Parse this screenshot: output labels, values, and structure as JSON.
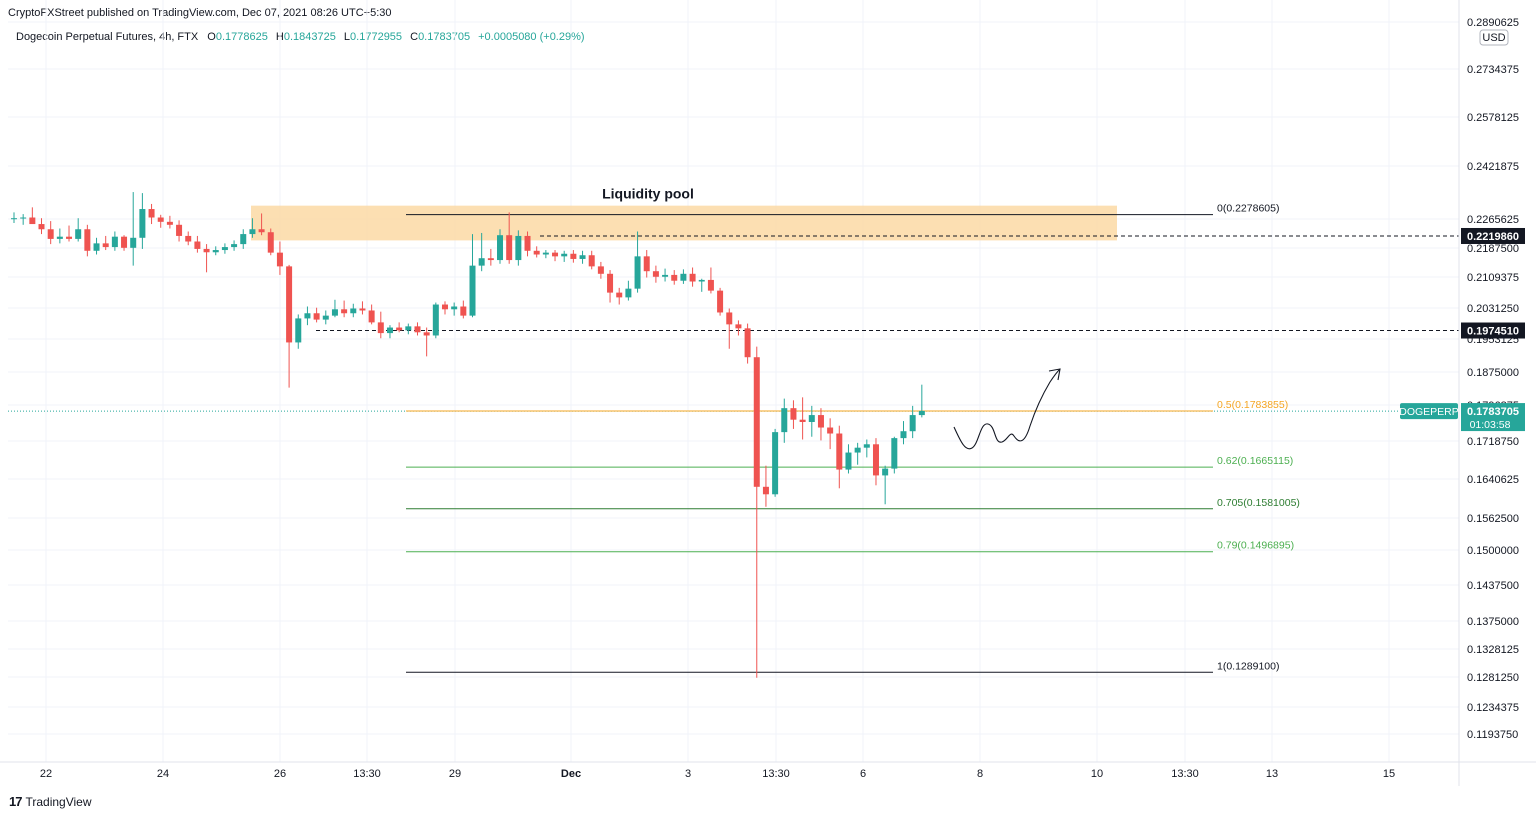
{
  "header": {
    "publisher_line": "CryptoFXStreet published on TradingView.com, Dec 07, 2021 08:26 UTC+5:30",
    "symbol_title": "Dogecoin Perpetual Futures, 4h, FTX",
    "ohlc": {
      "o_label": "O",
      "o_value": "0.1778625",
      "h_label": "H",
      "h_value": "0.1843725",
      "l_label": "L",
      "l_value": "0.1772955",
      "c_label": "C",
      "c_value": "0.1783705",
      "change": "+0.0005080 (+0.29%)"
    }
  },
  "footer": {
    "brand": "TradingView",
    "brand_mark": "17"
  },
  "colors": {
    "up": "#26a69a",
    "down": "#ef5350",
    "grid": "#f0f3fa",
    "zone": "#fbd9a4",
    "fib_half": "#f5a623",
    "fib_green": "#4caf50",
    "text": "#131722"
  },
  "chart_data": {
    "type": "candlestick",
    "title": "Dogecoin Perpetual Futures, 4h, FTX",
    "currency": "USD",
    "x_tick_labels": [
      "22",
      "24",
      "26",
      "13:30",
      "29",
      "Dec",
      "3",
      "13:30",
      "6",
      "8",
      "10",
      "13:30",
      "13",
      "15"
    ],
    "y_tick_labels": [
      "0.2890625",
      "0.2734375",
      "0.2578125",
      "0.2421875",
      "0.2265625",
      "0.2187500",
      "0.2109375",
      "0.2031250",
      "0.1953125",
      "0.1875000",
      "0.1796875",
      "0.1718750",
      "0.1640625",
      "0.1562500",
      "0.1500000",
      "0.1437500",
      "0.1375000",
      "0.1328125",
      "0.1281250",
      "0.1234375",
      "0.1193750"
    ],
    "last_price": {
      "symbol": "DOGEPERP",
      "value": "0.1783705",
      "countdown": "01:03:58"
    },
    "horizontal_levels": [
      {
        "label": "0.2219860",
        "value": 0.221986,
        "style": "dashed"
      },
      {
        "label": "0.1974510",
        "value": 0.197451,
        "style": "dashed"
      }
    ],
    "fib_levels": [
      {
        "label": "0(0.2278605)",
        "ratio": 0,
        "value": 0.2278605,
        "color": "#131722"
      },
      {
        "label": "0.5(0.1783855)",
        "ratio": 0.5,
        "value": 0.1783855,
        "color": "#f5a623"
      },
      {
        "label": "0.62(0.1665115)",
        "ratio": 0.62,
        "value": 0.1665115,
        "color": "#4caf50"
      },
      {
        "label": "0.705(0.1581005)",
        "ratio": 0.705,
        "value": 0.1581005,
        "color": "#2e7d32"
      },
      {
        "label": "0.79(0.1496895)",
        "ratio": 0.79,
        "value": 0.1496895,
        "color": "#4caf50"
      },
      {
        "label": "1(0.1289100)",
        "ratio": 1,
        "value": 0.12891,
        "color": "#131722"
      }
    ],
    "annotation": {
      "text": "Liquidity pool",
      "zone": [
        0.2208,
        0.2305
      ]
    },
    "candles": [
      {
        "o": 0.2265,
        "h": 0.2285,
        "l": 0.2255,
        "c": 0.2268
      },
      {
        "o": 0.2268,
        "h": 0.228,
        "l": 0.225,
        "c": 0.227
      },
      {
        "o": 0.227,
        "h": 0.23,
        "l": 0.226,
        "c": 0.2252
      },
      {
        "o": 0.2252,
        "h": 0.2268,
        "l": 0.2225,
        "c": 0.2238
      },
      {
        "o": 0.2238,
        "h": 0.226,
        "l": 0.2198,
        "c": 0.2212
      },
      {
        "o": 0.2212,
        "h": 0.224,
        "l": 0.22,
        "c": 0.2218
      },
      {
        "o": 0.2218,
        "h": 0.2248,
        "l": 0.2205,
        "c": 0.2212
      },
      {
        "o": 0.2212,
        "h": 0.2268,
        "l": 0.2205,
        "c": 0.2238
      },
      {
        "o": 0.2238,
        "h": 0.225,
        "l": 0.2165,
        "c": 0.218
      },
      {
        "o": 0.218,
        "h": 0.2215,
        "l": 0.217,
        "c": 0.22
      },
      {
        "o": 0.22,
        "h": 0.222,
        "l": 0.2182,
        "c": 0.219
      },
      {
        "o": 0.219,
        "h": 0.2232,
        "l": 0.218,
        "c": 0.2218
      },
      {
        "o": 0.2218,
        "h": 0.2222,
        "l": 0.218,
        "c": 0.2188
      },
      {
        "o": 0.2188,
        "h": 0.2345,
        "l": 0.214,
        "c": 0.2215
      },
      {
        "o": 0.2215,
        "h": 0.2342,
        "l": 0.2185,
        "c": 0.2295
      },
      {
        "o": 0.2295,
        "h": 0.231,
        "l": 0.2252,
        "c": 0.227
      },
      {
        "o": 0.227,
        "h": 0.2278,
        "l": 0.2242,
        "c": 0.2258
      },
      {
        "o": 0.2258,
        "h": 0.2275,
        "l": 0.224,
        "c": 0.225
      },
      {
        "o": 0.225,
        "h": 0.2262,
        "l": 0.2205,
        "c": 0.222
      },
      {
        "o": 0.222,
        "h": 0.2232,
        "l": 0.2195,
        "c": 0.2205
      },
      {
        "o": 0.2205,
        "h": 0.222,
        "l": 0.2175,
        "c": 0.2185
      },
      {
        "o": 0.2185,
        "h": 0.2198,
        "l": 0.2122,
        "c": 0.2176
      },
      {
        "o": 0.2176,
        "h": 0.2192,
        "l": 0.2168,
        "c": 0.2182
      },
      {
        "o": 0.2182,
        "h": 0.22,
        "l": 0.2172,
        "c": 0.219
      },
      {
        "o": 0.219,
        "h": 0.2208,
        "l": 0.218,
        "c": 0.2198
      },
      {
        "o": 0.2198,
        "h": 0.2238,
        "l": 0.2185,
        "c": 0.2225
      },
      {
        "o": 0.2225,
        "h": 0.2268,
        "l": 0.2215,
        "c": 0.2238
      },
      {
        "o": 0.2238,
        "h": 0.2282,
        "l": 0.2222,
        "c": 0.223
      },
      {
        "o": 0.223,
        "h": 0.224,
        "l": 0.2168,
        "c": 0.2175
      },
      {
        "o": 0.2175,
        "h": 0.2205,
        "l": 0.2115,
        "c": 0.2138
      },
      {
        "o": 0.2138,
        "h": 0.2142,
        "l": 0.1838,
        "c": 0.1945
      },
      {
        "o": 0.1945,
        "h": 0.2015,
        "l": 0.193,
        "c": 0.2005
      },
      {
        "o": 0.2005,
        "h": 0.2035,
        "l": 0.1988,
        "c": 0.2018
      },
      {
        "o": 0.2018,
        "h": 0.2032,
        "l": 0.1995,
        "c": 0.2002
      },
      {
        "o": 0.2002,
        "h": 0.2025,
        "l": 0.199,
        "c": 0.2012
      },
      {
        "o": 0.2012,
        "h": 0.2052,
        "l": 0.2008,
        "c": 0.2028
      },
      {
        "o": 0.2028,
        "h": 0.205,
        "l": 0.2008,
        "c": 0.2018
      },
      {
        "o": 0.2018,
        "h": 0.2042,
        "l": 0.2008,
        "c": 0.203
      },
      {
        "o": 0.203,
        "h": 0.2048,
        "l": 0.2015,
        "c": 0.2025
      },
      {
        "o": 0.2025,
        "h": 0.204,
        "l": 0.199,
        "c": 0.1995
      },
      {
        "o": 0.1995,
        "h": 0.2022,
        "l": 0.1955,
        "c": 0.1968
      },
      {
        "o": 0.1968,
        "h": 0.1988,
        "l": 0.1955,
        "c": 0.1982
      },
      {
        "o": 0.1982,
        "h": 0.1995,
        "l": 0.197,
        "c": 0.1975
      },
      {
        "o": 0.1975,
        "h": 0.1992,
        "l": 0.1965,
        "c": 0.1985
      },
      {
        "o": 0.1985,
        "h": 0.1995,
        "l": 0.1962,
        "c": 0.197
      },
      {
        "o": 0.197,
        "h": 0.1982,
        "l": 0.1912,
        "c": 0.1962
      },
      {
        "o": 0.1962,
        "h": 0.2045,
        "l": 0.1955,
        "c": 0.204
      },
      {
        "o": 0.204,
        "h": 0.2048,
        "l": 0.2015,
        "c": 0.2028
      },
      {
        "o": 0.2028,
        "h": 0.2045,
        "l": 0.2012,
        "c": 0.2035
      },
      {
        "o": 0.2035,
        "h": 0.205,
        "l": 0.2005,
        "c": 0.2012
      },
      {
        "o": 0.2012,
        "h": 0.2225,
        "l": 0.2008,
        "c": 0.214
      },
      {
        "o": 0.214,
        "h": 0.2228,
        "l": 0.2125,
        "c": 0.216
      },
      {
        "o": 0.216,
        "h": 0.2185,
        "l": 0.214,
        "c": 0.2155
      },
      {
        "o": 0.2155,
        "h": 0.2238,
        "l": 0.2145,
        "c": 0.2222
      },
      {
        "o": 0.2222,
        "h": 0.2285,
        "l": 0.2145,
        "c": 0.2155
      },
      {
        "o": 0.2155,
        "h": 0.2235,
        "l": 0.214,
        "c": 0.222
      },
      {
        "o": 0.222,
        "h": 0.2232,
        "l": 0.2165,
        "c": 0.218
      },
      {
        "o": 0.218,
        "h": 0.2192,
        "l": 0.2162,
        "c": 0.217
      },
      {
        "o": 0.217,
        "h": 0.2182,
        "l": 0.216,
        "c": 0.2175
      },
      {
        "o": 0.2175,
        "h": 0.2182,
        "l": 0.2152,
        "c": 0.2165
      },
      {
        "o": 0.2165,
        "h": 0.218,
        "l": 0.215,
        "c": 0.2172
      },
      {
        "o": 0.2172,
        "h": 0.2182,
        "l": 0.2148,
        "c": 0.2158
      },
      {
        "o": 0.2158,
        "h": 0.218,
        "l": 0.2145,
        "c": 0.2168
      },
      {
        "o": 0.2168,
        "h": 0.218,
        "l": 0.213,
        "c": 0.2138
      },
      {
        "o": 0.2138,
        "h": 0.215,
        "l": 0.2105,
        "c": 0.2118
      },
      {
        "o": 0.2118,
        "h": 0.2128,
        "l": 0.2045,
        "c": 0.207
      },
      {
        "o": 0.207,
        "h": 0.2082,
        "l": 0.204,
        "c": 0.2058
      },
      {
        "o": 0.2058,
        "h": 0.21,
        "l": 0.205,
        "c": 0.208
      },
      {
        "o": 0.208,
        "h": 0.2232,
        "l": 0.207,
        "c": 0.2165
      },
      {
        "o": 0.2165,
        "h": 0.2182,
        "l": 0.2108,
        "c": 0.2125
      },
      {
        "o": 0.2125,
        "h": 0.214,
        "l": 0.2095,
        "c": 0.211
      },
      {
        "o": 0.211,
        "h": 0.2132,
        "l": 0.2098,
        "c": 0.2115
      },
      {
        "o": 0.2115,
        "h": 0.2128,
        "l": 0.209,
        "c": 0.21
      },
      {
        "o": 0.21,
        "h": 0.213,
        "l": 0.2092,
        "c": 0.2118
      },
      {
        "o": 0.2118,
        "h": 0.2135,
        "l": 0.2085,
        "c": 0.2098
      },
      {
        "o": 0.2098,
        "h": 0.2105,
        "l": 0.2072,
        "c": 0.2102
      },
      {
        "o": 0.2102,
        "h": 0.2135,
        "l": 0.2068,
        "c": 0.2075
      },
      {
        "o": 0.2075,
        "h": 0.2082,
        "l": 0.2012,
        "c": 0.202
      },
      {
        "o": 0.202,
        "h": 0.203,
        "l": 0.193,
        "c": 0.199
      },
      {
        "o": 0.199,
        "h": 0.2,
        "l": 0.1962,
        "c": 0.198
      },
      {
        "o": 0.198,
        "h": 0.1992,
        "l": 0.1895,
        "c": 0.191
      },
      {
        "o": 0.191,
        "h": 0.1935,
        "l": 0.128,
        "c": 0.1625
      },
      {
        "o": 0.1625,
        "h": 0.1668,
        "l": 0.1585,
        "c": 0.161
      },
      {
        "o": 0.161,
        "h": 0.1745,
        "l": 0.1605,
        "c": 0.1738
      },
      {
        "o": 0.1738,
        "h": 0.1812,
        "l": 0.1715,
        "c": 0.179
      },
      {
        "o": 0.179,
        "h": 0.1808,
        "l": 0.1745,
        "c": 0.1765
      },
      {
        "o": 0.1765,
        "h": 0.1815,
        "l": 0.1722,
        "c": 0.176
      },
      {
        "o": 0.176,
        "h": 0.1795,
        "l": 0.1728,
        "c": 0.1775
      },
      {
        "o": 0.1775,
        "h": 0.179,
        "l": 0.172,
        "c": 0.1748
      },
      {
        "o": 0.1748,
        "h": 0.1768,
        "l": 0.1702,
        "c": 0.1735
      },
      {
        "o": 0.1735,
        "h": 0.1752,
        "l": 0.1622,
        "c": 0.166
      },
      {
        "o": 0.166,
        "h": 0.1712,
        "l": 0.1652,
        "c": 0.1695
      },
      {
        "o": 0.1695,
        "h": 0.1715,
        "l": 0.167,
        "c": 0.1705
      },
      {
        "o": 0.1705,
        "h": 0.1722,
        "l": 0.1685,
        "c": 0.1712
      },
      {
        "o": 0.1712,
        "h": 0.1725,
        "l": 0.1628,
        "c": 0.1648
      },
      {
        "o": 0.1648,
        "h": 0.1668,
        "l": 0.159,
        "c": 0.1662
      },
      {
        "o": 0.1662,
        "h": 0.1728,
        "l": 0.1652,
        "c": 0.1725
      },
      {
        "o": 0.1725,
        "h": 0.1762,
        "l": 0.1712,
        "c": 0.174
      },
      {
        "o": 0.174,
        "h": 0.1795,
        "l": 0.1725,
        "c": 0.1775
      },
      {
        "o": 0.1775,
        "h": 0.1845,
        "l": 0.177,
        "c": 0.1784
      }
    ]
  },
  "price_axis": {
    "currency_label": "USD",
    "marker_a": "0.2219860",
    "marker_b": "0.1974510",
    "marker_price": "0.1783705",
    "marker_countdown": "01:03:58",
    "symbol_tag": "DOGEPERP"
  }
}
